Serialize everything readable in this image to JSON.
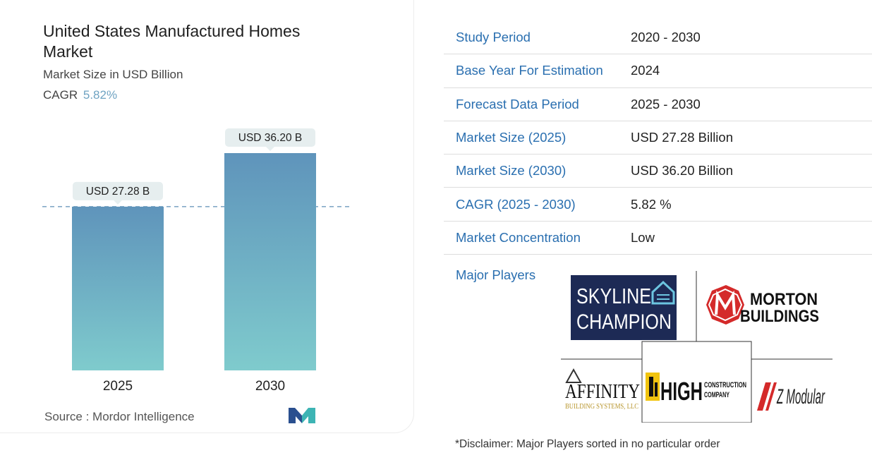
{
  "left": {
    "title": "United States Manufactured Homes Market",
    "subtitle": "Market Size in USD Billion",
    "cagr_label": "CAGR",
    "cagr_value": "5.82%",
    "source": "Source : Mordor Intelligence"
  },
  "chart_data": {
    "type": "bar",
    "categories": [
      "2025",
      "2030"
    ],
    "values": [
      27.28,
      36.2
    ],
    "data_labels": [
      "USD 27.28 B",
      "USD 36.20 B"
    ],
    "title": "United States Manufactured Homes Market",
    "ylabel": "Market Size in USD Billion",
    "xlabel": "",
    "ylim": [
      0,
      36.2
    ],
    "grid": false,
    "reference_line_value": 27.28,
    "colors": {
      "bar_top": "#5f94bb",
      "bar_bottom": "#7fcbcd",
      "label_bg": "#e6eeef",
      "dash": "#5f8fb5"
    }
  },
  "table": {
    "rows": [
      {
        "label": "Study Period",
        "value": "2020 - 2030"
      },
      {
        "label": "Base Year For Estimation",
        "value": "2024"
      },
      {
        "label": "Forecast Data Period",
        "value": "2025 - 2030"
      },
      {
        "label": "Market Size (2025)",
        "value": "USD 27.28 Billion"
      },
      {
        "label": "Market Size (2030)",
        "value": "USD 36.20 Billion"
      },
      {
        "label": "CAGR (2025 - 2030)",
        "value": "5.82 %"
      },
      {
        "label": "Market Concentration",
        "value": "Low"
      }
    ],
    "players_label": "Major Players"
  },
  "players": {
    "skyline_1": "SKYLINE",
    "skyline_2": "CHAMPION",
    "morton_1": "MORTON",
    "morton_2": "BUILDINGS",
    "affinity_1": "AFFINITY",
    "affinity_2": "BUILDING SYSTEMS, LLC",
    "high_1": "HIGH",
    "high_2": "CONSTRUCTION",
    "high_3": "COMPANY",
    "zmodular": "Z Modular"
  },
  "disclaimer": "*Disclaimer: Major Players sorted in no particular order",
  "colors": {
    "accent": "#2a6fb0",
    "cagr": "#6fa3c2",
    "skyline_bg": "#1d2a55",
    "morton_red": "#d42a2a",
    "high_yellow": "#f1c40f",
    "zmod_red": "#d42a2a"
  }
}
